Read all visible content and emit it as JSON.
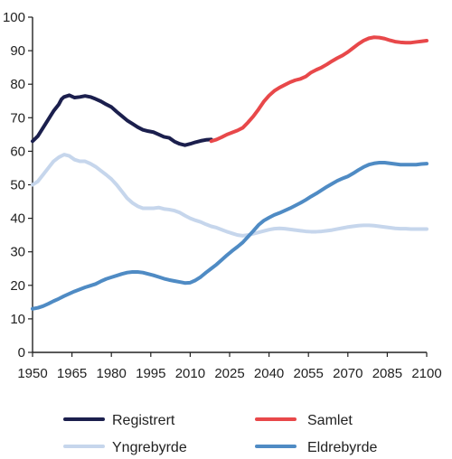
{
  "chart_data": {
    "type": "line",
    "title": "",
    "xlabel": "",
    "ylabel": "",
    "xlim": [
      1950,
      2100
    ],
    "ylim": [
      0,
      100
    ],
    "x_ticks": [
      1950,
      1965,
      1980,
      1995,
      2010,
      2025,
      2040,
      2055,
      2070,
      2085,
      2100
    ],
    "y_ticks": [
      0,
      10,
      20,
      30,
      40,
      50,
      60,
      70,
      80,
      90,
      100
    ],
    "grid": false,
    "legend_position": "bottom",
    "series": [
      {
        "name": "Registrert",
        "color": "#1b1f4d",
        "x": [
          1950,
          1952,
          1954,
          1956,
          1958,
          1960,
          1961,
          1962,
          1964,
          1966,
          1968,
          1970,
          1972,
          1974,
          1976,
          1978,
          1980,
          1982,
          1984,
          1986,
          1988,
          1990,
          1992,
          1994,
          1996,
          1998,
          2000,
          2002,
          2004,
          2006,
          2008,
          2010,
          2012,
          2014,
          2016,
          2018
        ],
        "y": [
          63,
          64.5,
          67,
          69.5,
          72,
          74,
          75.5,
          76.2,
          76.7,
          76,
          76.2,
          76.5,
          76.2,
          75.6,
          74.9,
          74,
          73.2,
          71.8,
          70.5,
          69.2,
          68.2,
          67.2,
          66.4,
          66,
          65.7,
          65,
          64.3,
          64,
          62.9,
          62.2,
          61.8,
          62.2,
          62.7,
          63.1,
          63.4,
          63.5
        ]
      },
      {
        "name": "Samlet",
        "color": "#e8484a",
        "x": [
          2018,
          2020,
          2022,
          2024,
          2026,
          2028,
          2030,
          2032,
          2034,
          2036,
          2038,
          2040,
          2042,
          2044,
          2046,
          2048,
          2050,
          2052,
          2054,
          2056,
          2058,
          2060,
          2062,
          2064,
          2066,
          2068,
          2070,
          2072,
          2074,
          2076,
          2078,
          2080,
          2082,
          2084,
          2086,
          2088,
          2090,
          2092,
          2094,
          2096,
          2098,
          2100
        ],
        "y": [
          63,
          63.5,
          64.2,
          65,
          65.6,
          66.2,
          67,
          68.6,
          70.4,
          72.5,
          74.8,
          76.6,
          78,
          79,
          79.8,
          80.6,
          81.2,
          81.6,
          82.3,
          83.5,
          84.3,
          85,
          85.9,
          86.9,
          87.8,
          88.6,
          89.6,
          90.8,
          92,
          93,
          93.7,
          94,
          93.9,
          93.6,
          93.1,
          92.7,
          92.5,
          92.4,
          92.4,
          92.6,
          92.8,
          93
        ]
      },
      {
        "name": "Yngrebyrde",
        "color": "#c6d6ec",
        "x": [
          1950,
          1952,
          1954,
          1956,
          1958,
          1960,
          1962,
          1964,
          1966,
          1968,
          1970,
          1972,
          1974,
          1976,
          1978,
          1980,
          1982,
          1984,
          1986,
          1988,
          1990,
          1992,
          1994,
          1996,
          1998,
          2000,
          2002,
          2004,
          2006,
          2008,
          2010,
          2012,
          2014,
          2016,
          2018,
          2020,
          2022,
          2024,
          2026,
          2028,
          2030,
          2032,
          2034,
          2036,
          2038,
          2040,
          2042,
          2044,
          2046,
          2048,
          2050,
          2052,
          2054,
          2056,
          2058,
          2060,
          2062,
          2064,
          2066,
          2068,
          2070,
          2072,
          2074,
          2076,
          2078,
          2080,
          2082,
          2084,
          2086,
          2088,
          2090,
          2092,
          2094,
          2096,
          2098,
          2100
        ],
        "y": [
          50,
          51,
          53,
          55,
          57,
          58.2,
          59,
          58.6,
          57.5,
          57,
          57,
          56.3,
          55.4,
          54.2,
          53,
          51.7,
          50,
          48,
          46,
          44.6,
          43.6,
          43,
          43,
          43,
          43.2,
          42.8,
          42.6,
          42.3,
          41.7,
          40.8,
          40,
          39.4,
          38.9,
          38.2,
          37.6,
          37.2,
          36.6,
          36,
          35.5,
          35,
          34.8,
          35,
          35.4,
          35.8,
          36.2,
          36.6,
          36.9,
          37,
          36.9,
          36.7,
          36.5,
          36.3,
          36.1,
          36,
          36,
          36.1,
          36.3,
          36.5,
          36.8,
          37.1,
          37.4,
          37.6,
          37.8,
          37.9,
          37.9,
          37.8,
          37.6,
          37.4,
          37.2,
          37,
          36.9,
          36.9,
          36.8,
          36.8,
          36.8,
          36.8
        ]
      },
      {
        "name": "Eldrebyrde",
        "color": "#4f8bc4",
        "x": [
          1950,
          1952,
          1954,
          1956,
          1958,
          1960,
          1962,
          1964,
          1966,
          1968,
          1970,
          1972,
          1974,
          1976,
          1978,
          1980,
          1982,
          1984,
          1986,
          1988,
          1990,
          1992,
          1994,
          1996,
          1998,
          2000,
          2002,
          2004,
          2006,
          2008,
          2010,
          2012,
          2014,
          2016,
          2018,
          2020,
          2022,
          2024,
          2026,
          2028,
          2030,
          2032,
          2034,
          2036,
          2038,
          2040,
          2042,
          2044,
          2046,
          2048,
          2050,
          2052,
          2054,
          2056,
          2058,
          2060,
          2062,
          2064,
          2066,
          2068,
          2070,
          2072,
          2074,
          2076,
          2078,
          2080,
          2082,
          2084,
          2086,
          2088,
          2090,
          2092,
          2094,
          2096,
          2098,
          2100
        ],
        "y": [
          13,
          13.3,
          13.8,
          14.5,
          15.3,
          16,
          16.8,
          17.5,
          18.2,
          18.8,
          19.4,
          19.9,
          20.4,
          21.2,
          21.9,
          22.4,
          22.9,
          23.4,
          23.8,
          24,
          24,
          23.8,
          23.4,
          23,
          22.5,
          22,
          21.6,
          21.3,
          21,
          20.7,
          20.8,
          21.5,
          22.5,
          23.8,
          25,
          26.2,
          27.6,
          29,
          30.3,
          31.5,
          32.8,
          34.5,
          36.2,
          38,
          39.3,
          40.2,
          41,
          41.6,
          42.3,
          43,
          43.8,
          44.6,
          45.5,
          46.5,
          47.4,
          48.4,
          49.4,
          50.3,
          51.2,
          51.9,
          52.5,
          53.4,
          54.4,
          55.3,
          56,
          56.4,
          56.6,
          56.6,
          56.4,
          56.2,
          56,
          56,
          56,
          56,
          56.2,
          56.3
        ]
      }
    ]
  }
}
